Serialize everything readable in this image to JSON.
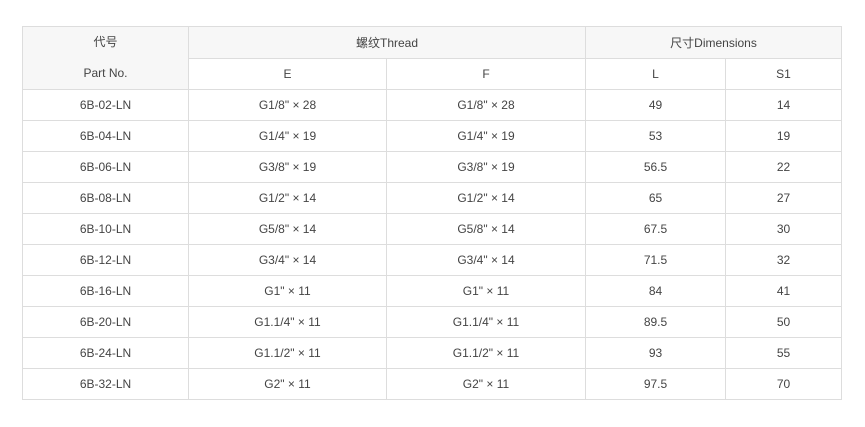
{
  "header": {
    "code_cn": "代号",
    "part_no": "Part No.",
    "thread": "螺纹Thread",
    "dimensions": "尺寸Dimensions",
    "E": "E",
    "F": "F",
    "L": "L",
    "S1": "S1"
  },
  "rows": [
    [
      "6B-02-LN",
      "G1/8\" × 28",
      "G1/8\" × 28",
      "49",
      "14"
    ],
    [
      "6B-04-LN",
      "G1/4\" × 19",
      "G1/4\" × 19",
      "53",
      "19"
    ],
    [
      "6B-06-LN",
      "G3/8\" × 19",
      "G3/8\" × 19",
      "56.5",
      "22"
    ],
    [
      "6B-08-LN",
      "G1/2\" × 14",
      "G1/2\" × 14",
      "65",
      "27"
    ],
    [
      "6B-10-LN",
      "G5/8\" × 14",
      "G5/8\" × 14",
      "67.5",
      "30"
    ],
    [
      "6B-12-LN",
      "G3/4\" × 14",
      "G3/4\" × 14",
      "71.5",
      "32"
    ],
    [
      "6B-16-LN",
      "G1\" × 11",
      "G1\" × 11",
      "84",
      "41"
    ],
    [
      "6B-20-LN",
      "G1.1/4\" × 11",
      "G1.1/4\" × 11",
      "89.5",
      "50"
    ],
    [
      "6B-24-LN",
      "G1.1/2\" × 11",
      "G1.1/2\" × 11",
      "93",
      "55"
    ],
    [
      "6B-32-LN",
      "G2\" × 11",
      "G2\" × 11",
      "97.5",
      "70"
    ]
  ]
}
